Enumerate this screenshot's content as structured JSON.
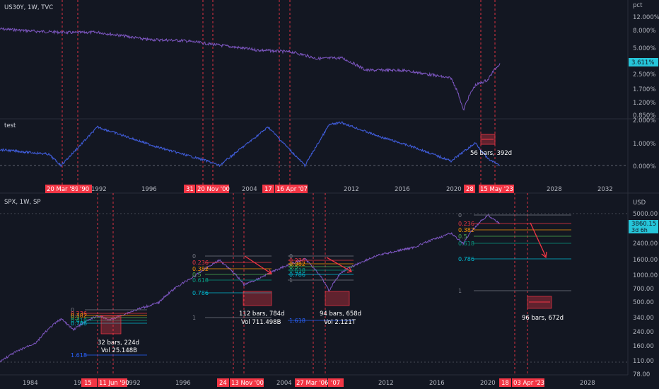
{
  "colors": {
    "bg": "#131722",
    "line": "#7e57c2",
    "osc": "#3f5bd6",
    "vline": "#f23645",
    "price_label": "#26c6da",
    "divider": "#2a2e39",
    "fib_0": "#787b86",
    "fib_236": "#f23645",
    "fib_382": "#ff9800",
    "fib_5": "#4caf50",
    "fib_618": "#089981",
    "fib_786": "#00bcd4",
    "fib_1": "#787b86",
    "fib_1618": "#2962ff"
  },
  "pane_top": {
    "title": "US30Y, 1W, TVC",
    "axis_unit": "pct",
    "axis_labels": [
      "12.000%",
      "8.000%",
      "5.000%",
      "2.500%",
      "1.700%",
      "1.200%",
      "0.850%"
    ],
    "price_tag": "3.611%"
  },
  "pane_mid": {
    "title": "test",
    "axis_labels": [
      "2.000%",
      "1.000%",
      "0.000%"
    ],
    "x_labels": [
      "1992",
      "1996",
      "2004",
      "2012",
      "2016",
      "2020",
      "2028",
      "2032"
    ],
    "date_tags": [
      "20 Mar '89",
      "'90",
      "31",
      "20 Nov '00",
      "17",
      "16 Apr '07",
      "28",
      "15 May '23"
    ],
    "annotation": "56 bars, 392d"
  },
  "pane_bottom": {
    "title": "SPX, 1W, SP",
    "axis_unit": "USD",
    "axis_labels": [
      "5000.00",
      "2400.00",
      "1600.00",
      "1000.00",
      "700.00",
      "500.00",
      "340.00",
      "240.00",
      "160.00",
      "110.00",
      "78.00"
    ],
    "price_tag_value": "3860.15",
    "price_tag_time": "3d 6h",
    "x_labels": [
      "1984",
      "19",
      "1992",
      "1996",
      "2004",
      "2012",
      "2016",
      "2020",
      "2028"
    ],
    "date_tags": [
      "15",
      "11 Jun '90",
      "24",
      "13 Nov '00",
      "27 Mar '06",
      "'07",
      "18",
      "03 Apr '23"
    ],
    "fib_levels": [
      "0",
      "0.236",
      "0.382",
      "0.5",
      "0.618",
      "0.786",
      "1",
      "1.618"
    ],
    "annotations": [
      {
        "bars": "32 bars, 224d",
        "vol": "Vol 25.148B"
      },
      {
        "bars": "112 bars, 784d",
        "vol": "Vol 711.498B"
      },
      {
        "bars": "94 bars, 658d",
        "vol": "Vol 2.121T"
      },
      {
        "bars": "96 bars, 672d",
        "vol": ""
      }
    ]
  },
  "chart_data": [
    {
      "type": "line",
      "title": "US30Y, 1W, TVC",
      "ylabel": "pct",
      "yscale": "log",
      "x": [
        1982,
        1985,
        1988,
        1990,
        1994,
        1997,
        2000,
        2003,
        2006,
        2008,
        2010,
        2012,
        2015,
        2019,
        2020,
        2021,
        2022,
        2023
      ],
      "series": [
        {
          "values": [
            9.2,
            8.6,
            8.3,
            8.4,
            6.9,
            6.7,
            5.9,
            5.2,
            4.9,
            4.1,
            4.2,
            3.0,
            3.0,
            2.4,
            1.0,
            2.0,
            2.3,
            3.611
          ]
        }
      ],
      "ylim": [
        0.85,
        12
      ]
    },
    {
      "type": "line",
      "title": "test",
      "x": [
        1982,
        1986,
        1987,
        1990,
        1995,
        1999,
        2000,
        2004,
        2007,
        2009,
        2010,
        2013,
        2016,
        2019,
        2021,
        2022,
        2023
      ],
      "series": [
        {
          "values": [
            0.7,
            0.5,
            0.0,
            1.7,
            0.8,
            0.2,
            0.0,
            1.7,
            0.0,
            1.8,
            1.9,
            1.3,
            0.8,
            0.2,
            1.0,
            0.3,
            0.0
          ]
        }
      ],
      "ylim": [
        -0.5,
        2.0
      ]
    },
    {
      "type": "line",
      "title": "SPX, 1W, SP",
      "ylabel": "USD",
      "yscale": "log",
      "x": [
        1982,
        1985,
        1987,
        1988,
        1990,
        1991,
        1995,
        1998,
        2000,
        2002,
        2003,
        2007,
        2009,
        2010,
        2013,
        2016,
        2019,
        2020,
        2022,
        2023
      ],
      "series": [
        {
          "values": [
            110,
            180,
            330,
            250,
            360,
            320,
            500,
            1000,
            1500,
            800,
            900,
            1550,
            680,
            1100,
            1700,
            2100,
            3000,
            2300,
            4800,
            3860
          ]
        }
      ],
      "ylim": [
        70,
        6000
      ]
    }
  ]
}
